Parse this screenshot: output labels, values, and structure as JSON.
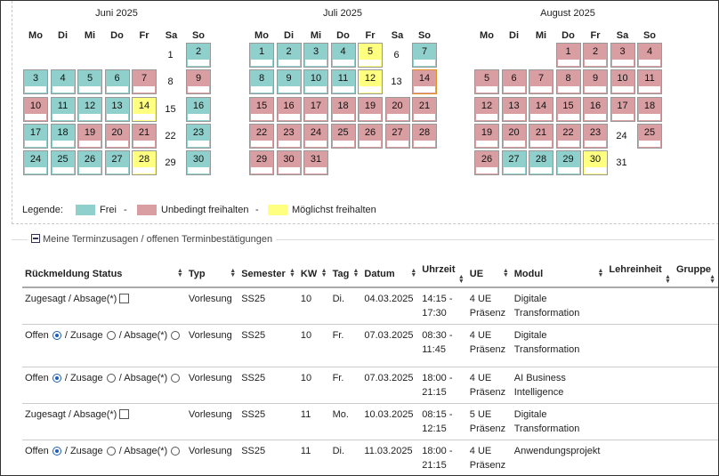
{
  "calendar": {
    "weekdays": [
      "Mo",
      "Di",
      "Mi",
      "Do",
      "Fr",
      "Sa",
      "So"
    ],
    "months": [
      {
        "title": "Juni 2025",
        "start_col": 6,
        "days": [
          "frei_none",
          "frei",
          "frei",
          "frei",
          "frei",
          "frei",
          "unb",
          "plain",
          "unb",
          "unb",
          "frei",
          "frei",
          "frei",
          "moegl",
          "plain",
          "frei",
          "frei",
          "frei",
          "unb",
          "unb",
          "unb",
          "plain",
          "frei",
          "frei",
          "frei",
          "frei",
          "frei",
          "moegl",
          "plain",
          "frei"
        ]
      },
      {
        "title": "Juli 2025",
        "start_col": 1,
        "days": [
          "frei",
          "frei",
          "frei",
          "frei",
          "moegl",
          "plain",
          "frei",
          "frei",
          "frei",
          "frei",
          "frei",
          "moegl",
          "plain",
          "unb_today",
          "unb",
          "unb",
          "unb",
          "unb",
          "unb",
          "unb",
          "unb",
          "unb",
          "unb",
          "unb",
          "unb",
          "unb",
          "unb",
          "unb",
          "unb",
          "unb",
          "unb"
        ]
      },
      {
        "title": "August 2025",
        "start_col": 4,
        "days": [
          "unb",
          "unb",
          "unb",
          "unb",
          "unb",
          "unb",
          "unb",
          "unb",
          "unb",
          "unb",
          "unb",
          "unb",
          "unb",
          "unb",
          "unb",
          "unb",
          "unb",
          "unb",
          "unb",
          "unb",
          "unb",
          "unb",
          "unb",
          "plain",
          "unb",
          "unb",
          "frei",
          "frei",
          "frei",
          "moegl",
          "plain"
        ]
      }
    ],
    "day_numbers": {
      "juni": [
        "1",
        "2",
        "3",
        "4",
        "5",
        "6",
        "7",
        "8",
        "9",
        "10",
        "11",
        "12",
        "13",
        "14",
        "15",
        "16",
        "17",
        "18",
        "19",
        "20",
        "21",
        "22",
        "23",
        "24",
        "25",
        "26",
        "27",
        "28",
        "29",
        "30"
      ],
      "juli": [
        "1",
        "2",
        "3",
        "4",
        "5",
        "6",
        "7",
        "8",
        "9",
        "10",
        "11",
        "12",
        "13",
        "14",
        "15",
        "16",
        "17",
        "18",
        "19",
        "20",
        "21",
        "22",
        "23",
        "24",
        "25",
        "26",
        "27",
        "28",
        "29",
        "30",
        "31"
      ],
      "august": [
        "1",
        "2",
        "3",
        "4",
        "5",
        "6",
        "7",
        "8",
        "9",
        "10",
        "11",
        "12",
        "13",
        "14",
        "15",
        "16",
        "17",
        "18",
        "19",
        "20",
        "21",
        "22",
        "23",
        "24",
        "25",
        "26",
        "27",
        "28",
        "29",
        "30",
        "31"
      ]
    }
  },
  "legend": {
    "label": "Legende:",
    "frei": "Frei",
    "sep1": "-",
    "unbedingt": "Unbedingt freihalten",
    "sep2": "-",
    "moeglichst": "Möglichst freihalten"
  },
  "colors": {
    "frei": "#8fd0cc",
    "unbedingt": "#d99ea2",
    "moeglichst": "#ffff80",
    "radio": "#1b5fb8"
  },
  "section": {
    "title": "Meine Terminzusagen / offenen Terminbestätigungen"
  },
  "table": {
    "headers": [
      "Rückmeldung Status",
      "Typ",
      "Semester",
      "KW",
      "Tag",
      "Datum",
      "Uhrzeit",
      "UE",
      "Modul",
      "Lehreinheit",
      "Gruppe"
    ],
    "rows": [
      {
        "status": "Zugesagt / Absage(*)",
        "type": "zugesagt",
        "typ": "Vorlesung",
        "semester": "SS25",
        "kw": "10",
        "tag": "Di.",
        "datum": "04.03.2025",
        "uhrzeit1": "14:15 -",
        "uhrzeit2": "17:30",
        "ue1": "4 UE",
        "ue2": "Präsenz",
        "modul1": "Digitale",
        "modul2": "Transformation"
      },
      {
        "status_offen": "Offen",
        "status_zusage": "/ Zusage",
        "status_absage": "/ Absage(*)",
        "type": "offen",
        "typ": "Vorlesung",
        "semester": "SS25",
        "kw": "10",
        "tag": "Fr.",
        "datum": "07.03.2025",
        "uhrzeit1": "08:30 -",
        "uhrzeit2": "11:45",
        "ue1": "4 UE",
        "ue2": "Präsenz",
        "modul1": "Digitale",
        "modul2": "Transformation"
      },
      {
        "status_offen": "Offen",
        "status_zusage": "/ Zusage",
        "status_absage": "/ Absage(*)",
        "type": "offen",
        "typ": "Vorlesung",
        "semester": "SS25",
        "kw": "10",
        "tag": "Fr.",
        "datum": "07.03.2025",
        "uhrzeit1": "18:00 -",
        "uhrzeit2": "21:15",
        "ue1": "4 UE",
        "ue2": "Präsenz",
        "modul1": "AI Business",
        "modul2": "Intelligence"
      },
      {
        "status": "Zugesagt / Absage(*)",
        "type": "zugesagt",
        "typ": "Vorlesung",
        "semester": "SS25",
        "kw": "11",
        "tag": "Mo.",
        "datum": "10.03.2025",
        "uhrzeit1": "08:15 -",
        "uhrzeit2": "12:15",
        "ue1": "5 UE",
        "ue2": "Präsenz",
        "modul1": "Digitale",
        "modul2": "Transformation"
      },
      {
        "status_offen": "Offen",
        "status_zusage": "/ Zusage",
        "status_absage": "/ Absage(*)",
        "type": "offen",
        "typ": "Vorlesung",
        "semester": "SS25",
        "kw": "11",
        "tag": "Di.",
        "datum": "11.03.2025",
        "uhrzeit1": "18:00 -",
        "uhrzeit2": "21:15",
        "ue1": "4 UE",
        "ue2": "Präsenz",
        "modul1": "Anwendungsprojekt",
        "modul2": ""
      }
    ]
  }
}
